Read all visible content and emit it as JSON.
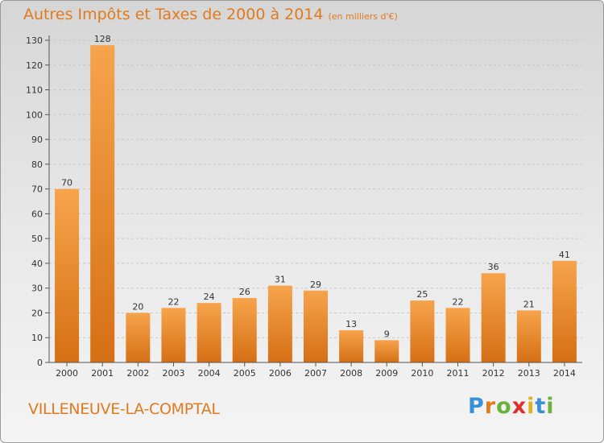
{
  "chart_data": {
    "type": "bar",
    "title": "Autres Impôts et Taxes de 2000 à 2014",
    "subtitle": "(en milliers d'€)",
    "categories": [
      "2000",
      "2001",
      "2002",
      "2003",
      "2004",
      "2005",
      "2006",
      "2007",
      "2008",
      "2009",
      "2010",
      "2011",
      "2012",
      "2013",
      "2014"
    ],
    "values": [
      70,
      128,
      20,
      22,
      24,
      26,
      31,
      29,
      13,
      9,
      25,
      22,
      36,
      21,
      41
    ],
    "ylim": [
      0,
      130
    ],
    "yticks": [
      0,
      10,
      20,
      30,
      40,
      50,
      60,
      70,
      80,
      90,
      100,
      110,
      120,
      130
    ],
    "grid": true,
    "bar_color": "#f0922f",
    "xlabel": "",
    "ylabel": ""
  },
  "footer": {
    "commune": "VILLENEUVE-LA-COMPTAL",
    "logo_letters": [
      "P",
      "r",
      "o",
      "x",
      "i",
      "t",
      "i"
    ],
    "logo_colors": [
      "#3a8fd6",
      "#e07a1f",
      "#6bb23d",
      "#e0302a",
      "#e0b020",
      "#3a8fd6",
      "#6bb23d"
    ]
  },
  "colors": {
    "accent": "#e07a1f"
  }
}
